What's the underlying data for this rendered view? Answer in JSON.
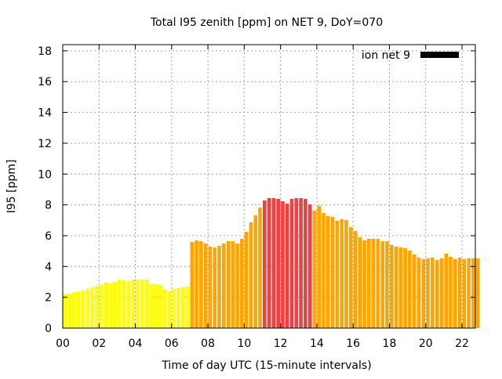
{
  "chart_data": {
    "type": "bar",
    "title": "Total I95 zenith [ppm] on NET 9, DoY=070",
    "xlabel": "Time of day UTC (15-minute intervals)",
    "ylabel": "I95 [ppm]",
    "xlim": [
      0,
      22.75
    ],
    "ylim": [
      0,
      18.4
    ],
    "grid": true,
    "legend": {
      "label": "ion net 9",
      "placement": "top-right",
      "color": "#000000"
    },
    "x_ticks": [
      "00",
      "02",
      "04",
      "06",
      "08",
      "10",
      "12",
      "14",
      "16",
      "18",
      "20",
      "22"
    ],
    "y_ticks": [
      "0",
      "2",
      "4",
      "6",
      "8",
      "10",
      "12",
      "14",
      "16",
      "18"
    ],
    "interval_hours": 0.25,
    "color_thresholds": [
      {
        "min": 0,
        "color": "#ffff00"
      },
      {
        "min": 4,
        "color": "#ffa500"
      },
      {
        "min": 8,
        "color": "#f04040"
      }
    ],
    "values": [
      2.22,
      2.22,
      2.32,
      2.39,
      2.44,
      2.55,
      2.65,
      2.75,
      2.8,
      2.95,
      2.9,
      3.0,
      3.15,
      3.1,
      3.05,
      3.15,
      3.15,
      3.15,
      3.15,
      2.85,
      2.85,
      2.8,
      2.49,
      2.39,
      2.55,
      2.59,
      2.65,
      2.7,
      5.59,
      5.69,
      5.64,
      5.49,
      5.29,
      5.24,
      5.34,
      5.49,
      5.64,
      5.64,
      5.49,
      5.8,
      6.25,
      6.86,
      7.32,
      7.83,
      8.29,
      8.44,
      8.44,
      8.39,
      8.23,
      8.08,
      8.39,
      8.44,
      8.44,
      8.39,
      8.03,
      7.63,
      7.93,
      7.47,
      7.27,
      7.22,
      6.97,
      7.07,
      7.02,
      6.56,
      6.31,
      5.9,
      5.7,
      5.8,
      5.8,
      5.8,
      5.64,
      5.64,
      5.39,
      5.29,
      5.24,
      5.19,
      5.03,
      4.78,
      4.58,
      4.48,
      4.53,
      4.58,
      4.42,
      4.53,
      4.83,
      4.63,
      4.48,
      4.58,
      4.48,
      4.53,
      4.53,
      4.53
    ]
  }
}
